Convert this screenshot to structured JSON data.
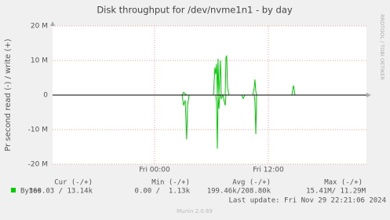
{
  "chart_data": {
    "type": "line",
    "title": "Disk throughput for /dev/nvme1n1 - by day",
    "y_label": "Pr second read (-) / write (+)",
    "side_label": "RRDTOOL / TOBI OETIKER",
    "x": [
      -10.76,
      2.73,
      2.9,
      3.06,
      3.23,
      3.39,
      3.48,
      3.64,
      3.81,
      6.21,
      6.37,
      6.46,
      6.54,
      6.62,
      6.7,
      6.79,
      6.87,
      6.95,
      7.03,
      7.2,
      7.37,
      7.45,
      7.53,
      7.61,
      7.7,
      7.86,
      9.19,
      9.35,
      9.52,
      10.35,
      10.51,
      10.59,
      10.68,
      10.76,
      10.92,
      14.48,
      14.65,
      14.81,
      22.35
    ],
    "series": [
      {
        "color": "#00cc00",
        "values": [
          0,
          0,
          0,
          0.8,
          0.3,
          0,
          0,
          0,
          0,
          0,
          8,
          6,
          9,
          0,
          10.5,
          0,
          5,
          10,
          0,
          0,
          0,
          0,
          11,
          11.3,
          2,
          0,
          0,
          0,
          0,
          0,
          2,
          4.5,
          1,
          0,
          0,
          0,
          2.8,
          0,
          0
        ]
      },
      {
        "color": "#00cc00",
        "values": [
          0,
          0,
          0,
          -3,
          -1.5,
          -12.8,
          -3,
          0,
          0,
          0,
          0,
          0,
          -2,
          -15.5,
          0,
          -4,
          0,
          0,
          -1,
          0,
          -2,
          -3,
          0,
          0,
          0,
          0,
          0,
          -1,
          0,
          0,
          0,
          -2,
          -11.3,
          0,
          0,
          0,
          0,
          0,
          0
        ]
      }
    ],
    "xlim": [
      -10.76,
      22.35
    ],
    "xticks": [
      {
        "value": 0,
        "label": "Fri 00:00"
      },
      {
        "value": 12,
        "label": "Fri 12:00"
      }
    ],
    "ylim": [
      -20,
      20
    ],
    "yticks": [
      {
        "value": -20,
        "label": "-20 M"
      },
      {
        "value": -10,
        "label": "-10 M"
      },
      0,
      {
        "value": 10,
        "label": "10 M"
      },
      {
        "value": 20,
        "label": "20 M"
      }
    ],
    "grid": true,
    "legend_table": {
      "headers": [
        "Cur (-/+)",
        "Min (-/+)",
        "Avg (-/+)",
        "Max (-/+)"
      ],
      "row": {
        "label": "Bytes",
        "color": "#00cc00",
        "cells": [
          "360.03 / 13.14k",
          "0.00 /  1.13k",
          "199.46k/208.80k",
          "15.41M/ 11.29M"
        ]
      }
    },
    "last_update": "Last update: Fri Nov 29 22:21:06 2024",
    "footer": "Munin 2.0.69"
  }
}
